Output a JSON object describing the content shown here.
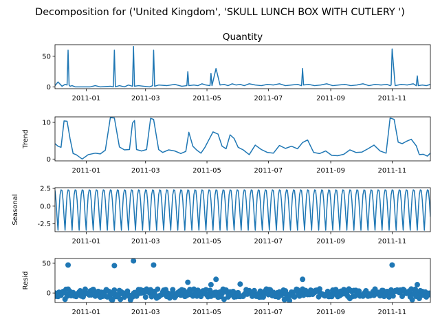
{
  "figure": {
    "suptitle": "Decomposition for ('United Kingdom', 'SKULL LUNCH BOX WITH CUTLERY ')"
  },
  "colors": {
    "series": "#1f77b4",
    "axes": "#000000",
    "background": "#ffffff"
  },
  "chart_data": [
    {
      "type": "line",
      "title": "Quantity",
      "ylabel": "",
      "xlabel": "",
      "x_range": [
        "2010-12-01",
        "2011-12-09"
      ],
      "ylim": [
        -3,
        69
      ],
      "grid": false,
      "x_ticks": [
        "2011-01",
        "2011-03",
        "2011-05",
        "2011-07",
        "2011-09",
        "2011-11"
      ],
      "y_ticks": [
        0,
        50
      ],
      "series": [
        {
          "x": [
            "2010-12-01",
            "2010-12-04",
            "2010-12-08",
            "2010-12-11",
            "2010-12-13",
            "2010-12-14",
            "2010-12-15",
            "2010-12-16",
            "2010-12-18",
            "2010-12-21",
            "2011-01-05",
            "2011-01-10",
            "2011-01-15",
            "2011-01-25",
            "2011-01-28",
            "2011-01-29",
            "2011-01-30",
            "2011-02-03",
            "2011-02-08",
            "2011-02-12",
            "2011-02-16",
            "2011-02-17",
            "2011-02-18",
            "2011-02-22",
            "2011-02-27",
            "2011-03-05",
            "2011-03-08",
            "2011-03-09",
            "2011-03-10",
            "2011-03-14",
            "2011-03-22",
            "2011-03-30",
            "2011-04-06",
            "2011-04-11",
            "2011-04-12",
            "2011-04-13",
            "2011-04-18",
            "2011-04-22",
            "2011-04-26",
            "2011-04-30",
            "2011-05-04",
            "2011-05-05",
            "2011-05-06",
            "2011-05-10",
            "2011-05-14",
            "2011-05-18",
            "2011-05-22",
            "2011-05-26",
            "2011-05-30",
            "2011-06-03",
            "2011-06-07",
            "2011-06-12",
            "2011-06-18",
            "2011-06-24",
            "2011-06-30",
            "2011-07-06",
            "2011-07-12",
            "2011-07-18",
            "2011-07-24",
            "2011-07-30",
            "2011-08-03",
            "2011-08-04",
            "2011-08-05",
            "2011-08-10",
            "2011-08-16",
            "2011-08-22",
            "2011-08-28",
            "2011-09-03",
            "2011-09-09",
            "2011-09-15",
            "2011-09-21",
            "2011-09-27",
            "2011-10-03",
            "2011-10-09",
            "2011-10-15",
            "2011-10-21",
            "2011-10-27",
            "2011-10-30",
            "2011-10-31",
            "2011-11-01",
            "2011-11-04",
            "2011-11-10",
            "2011-11-16",
            "2011-11-22",
            "2011-11-25",
            "2011-11-26",
            "2011-11-27",
            "2011-12-01",
            "2011-12-05",
            "2011-12-09"
          ],
          "values": [
            2,
            8,
            1,
            4,
            3,
            60,
            3,
            1,
            2,
            0,
            0,
            2,
            0,
            1,
            0,
            60,
            0,
            2,
            0,
            3,
            1,
            66,
            1,
            2,
            1,
            0,
            2,
            60,
            1,
            3,
            2,
            4,
            1,
            2,
            25,
            2,
            3,
            2,
            5,
            3,
            2,
            22,
            2,
            30,
            3,
            4,
            2,
            5,
            3,
            4,
            2,
            5,
            3,
            2,
            4,
            3,
            5,
            2,
            3,
            4,
            2,
            30,
            3,
            4,
            2,
            3,
            5,
            2,
            3,
            4,
            2,
            3,
            5,
            2,
            4,
            3,
            4,
            2,
            3,
            62,
            2,
            4,
            3,
            5,
            2,
            18,
            2,
            3,
            2,
            4
          ]
        }
      ]
    },
    {
      "type": "line",
      "title": "",
      "ylabel": "Trend",
      "xlabel": "",
      "x_range": [
        "2010-12-01",
        "2011-12-09"
      ],
      "ylim": [
        -0.5,
        11.5
      ],
      "grid": false,
      "x_ticks": [
        "2011-01",
        "2011-03",
        "2011-05",
        "2011-07",
        "2011-09",
        "2011-11"
      ],
      "y_ticks": [
        0,
        10
      ],
      "series": [
        {
          "x": [
            "2010-12-01",
            "2010-12-04",
            "2010-12-07",
            "2010-12-10",
            "2010-12-13",
            "2010-12-16",
            "2010-12-19",
            "2010-12-22",
            "2010-12-28",
            "2011-01-03",
            "2011-01-10",
            "2011-01-15",
            "2011-01-20",
            "2011-01-25",
            "2011-01-29",
            "2011-02-03",
            "2011-02-08",
            "2011-02-13",
            "2011-02-16",
            "2011-02-18",
            "2011-02-20",
            "2011-02-25",
            "2011-03-02",
            "2011-03-06",
            "2011-03-09",
            "2011-03-14",
            "2011-03-18",
            "2011-03-24",
            "2011-03-30",
            "2011-04-05",
            "2011-04-10",
            "2011-04-13",
            "2011-04-17",
            "2011-04-21",
            "2011-04-25",
            "2011-04-29",
            "2011-05-03",
            "2011-05-07",
            "2011-05-12",
            "2011-05-16",
            "2011-05-20",
            "2011-05-24",
            "2011-05-28",
            "2011-06-01",
            "2011-06-06",
            "2011-06-12",
            "2011-06-18",
            "2011-06-24",
            "2011-06-30",
            "2011-07-06",
            "2011-07-12",
            "2011-07-18",
            "2011-07-24",
            "2011-07-30",
            "2011-08-04",
            "2011-08-09",
            "2011-08-15",
            "2011-08-21",
            "2011-08-27",
            "2011-09-02",
            "2011-09-08",
            "2011-09-14",
            "2011-09-20",
            "2011-09-26",
            "2011-10-02",
            "2011-10-08",
            "2011-10-14",
            "2011-10-20",
            "2011-10-26",
            "2011-10-30",
            "2011-11-03",
            "2011-11-07",
            "2011-11-11",
            "2011-11-15",
            "2011-11-20",
            "2011-11-25",
            "2011-11-28",
            "2011-12-02",
            "2011-12-06",
            "2011-12-09"
          ],
          "values": [
            4.2,
            3.5,
            3.2,
            10.4,
            10.3,
            5.5,
            1.5,
            1.2,
            0,
            1.2,
            1.6,
            1.4,
            2.4,
            11.3,
            11.2,
            3.3,
            2.5,
            2.6,
            9.8,
            10.5,
            2.6,
            2.2,
            2.6,
            11.1,
            10.8,
            2.6,
            1.8,
            2.5,
            2.2,
            1.5,
            2.1,
            7.3,
            3.5,
            2.4,
            1.6,
            3.2,
            5.3,
            7.4,
            6.8,
            3.5,
            2.8,
            6.6,
            5.6,
            3.2,
            2.5,
            1.2,
            3.8,
            2.6,
            1.8,
            1.6,
            3.7,
            2.9,
            3.5,
            2.8,
            4.5,
            5.2,
            1.8,
            1.5,
            2.2,
            1.0,
            0.9,
            1.3,
            2.5,
            1.8,
            1.9,
            2.8,
            3.8,
            2.2,
            1.6,
            11.2,
            10.8,
            4.6,
            4.2,
            4.8,
            5.4,
            3.6,
            1.2,
            1.3,
            0.8,
            1.6
          ]
        }
      ]
    },
    {
      "type": "line",
      "title": "",
      "ylabel": "Seasonal",
      "xlabel": "",
      "x_range": [
        "2010-12-01",
        "2011-12-09"
      ],
      "ylim": [
        -3.6,
        2.6
      ],
      "grid": false,
      "x_ticks": [
        "2011-01",
        "2011-03",
        "2011-05",
        "2011-07",
        "2011-09",
        "2011-11"
      ],
      "y_ticks": [
        2.5,
        0.0,
        -2.5
      ],
      "series": [
        {
          "period_days": 7,
          "pattern": [
            2.2,
            0.8,
            -1.5,
            -3.4,
            -0.6,
            1.6,
            2.3
          ]
        }
      ]
    },
    {
      "type": "scatter",
      "title": "",
      "ylabel": "Resid",
      "xlabel": "",
      "x_range": [
        "2010-12-01",
        "2011-12-09"
      ],
      "ylim": [
        -16,
        58
      ],
      "grid": false,
      "x_ticks": [
        "2011-01",
        "2011-03",
        "2011-05",
        "2011-07",
        "2011-09",
        "2011-11"
      ],
      "y_ticks": [
        0,
        50
      ],
      "outliers": [
        {
          "x": "2010-12-14",
          "y": 47
        },
        {
          "x": "2011-01-29",
          "y": 46
        },
        {
          "x": "2011-02-17",
          "y": 54
        },
        {
          "x": "2011-03-09",
          "y": 47
        },
        {
          "x": "2011-04-12",
          "y": 18
        },
        {
          "x": "2011-05-05",
          "y": 14
        },
        {
          "x": "2011-05-10",
          "y": 23
        },
        {
          "x": "2011-06-03",
          "y": 15
        },
        {
          "x": "2011-08-04",
          "y": 23
        },
        {
          "x": "2011-11-01",
          "y": 47
        },
        {
          "x": "2011-11-26",
          "y": 14
        }
      ]
    }
  ]
}
